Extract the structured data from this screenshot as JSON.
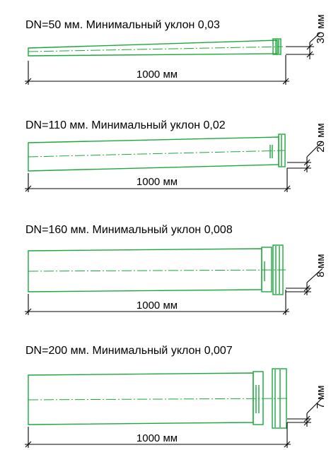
{
  "diagrams": [
    {
      "title": "DN=50 мм. Минимальный уклон 0,03",
      "length_label": "1000 мм",
      "drop_label": "30 мм"
    },
    {
      "title": "DN=110 мм. Минимальный уклон 0,02",
      "length_label": "1000 мм",
      "drop_label": "20 мм"
    },
    {
      "title": "DN=160 мм. Минимальный уклон 0,008",
      "length_label": "1000 мм",
      "drop_label": "8 мм"
    },
    {
      "title": "DN=200 мм. Минимальный уклон 0,007",
      "length_label": "1000 мм",
      "drop_label": "7 мм"
    }
  ],
  "colors": {
    "pipe": "#1aa83a",
    "dimension": "#000000"
  }
}
